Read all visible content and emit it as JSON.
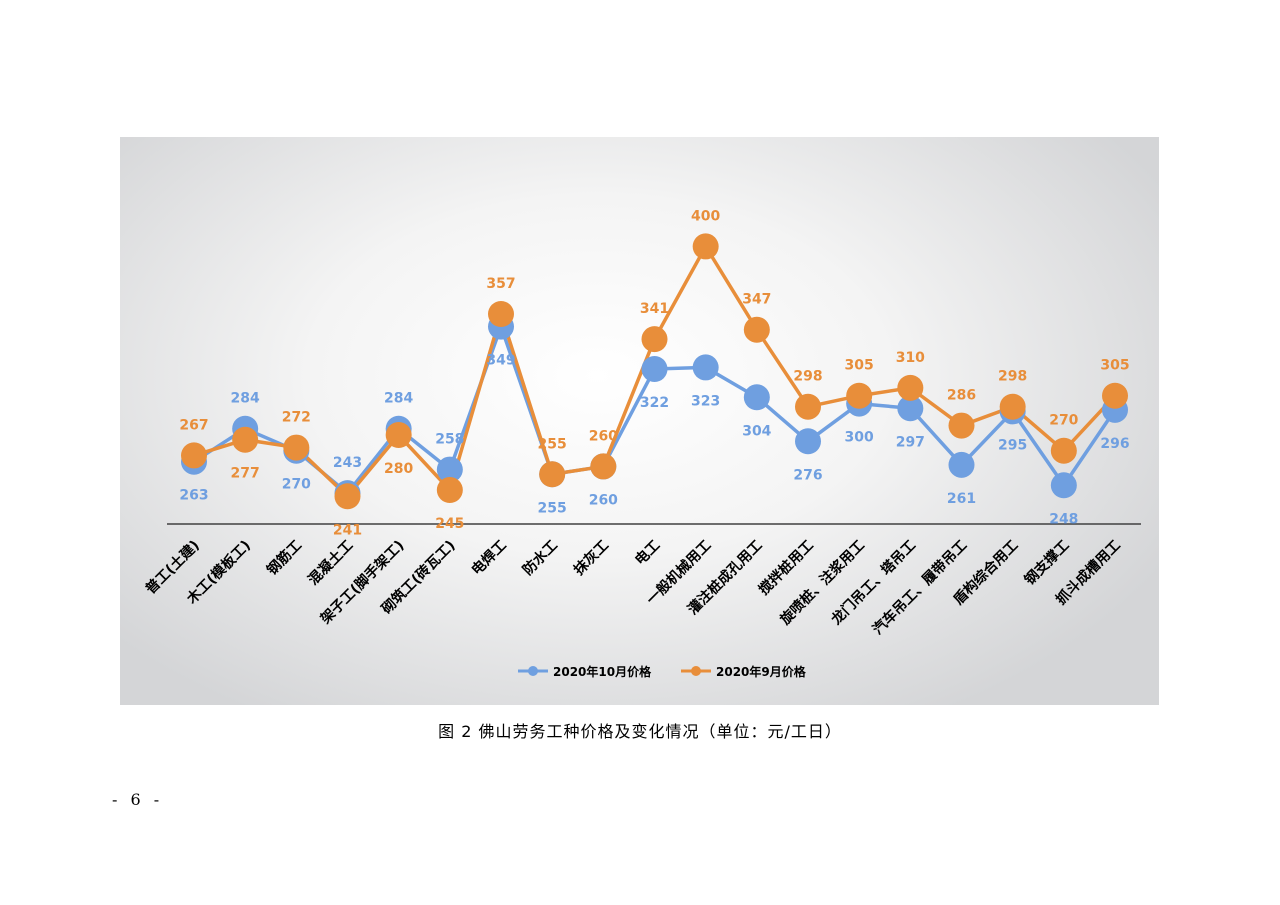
{
  "caption": "图 2   佛山劳务工种价格及变化情况（单位：元/工日）",
  "page_number": "- 6 -",
  "colors": {
    "series_oct": "#6f9fe0",
    "series_sep": "#e88e3a",
    "axis": "#404040"
  },
  "chart_data": {
    "type": "line",
    "title": "",
    "xlabel": "",
    "ylabel": "",
    "categories": [
      "普工(土建)",
      "木工(模板工)",
      "钢筋工",
      "混凝土工",
      "架子工(脚手架工)",
      "砌筑工(砖瓦工)",
      "电焊工",
      "防水工",
      "抹灰工",
      "电工",
      "一般机械用工",
      "灌注桩成孔用工",
      "搅拌桩用工",
      "旋喷桩、注浆用工",
      "龙门吊工、塔吊工",
      "汽车吊工、履带吊工",
      "盾构综合用工",
      "钢支撑工",
      "抓斗成槽用工"
    ],
    "series": [
      {
        "name": "2020年10月价格",
        "color": "#6f9fe0",
        "values": [
          263,
          284,
          270,
          243,
          284,
          258,
          349,
          255,
          260,
          322,
          323,
          304,
          276,
          300,
          297,
          261,
          295,
          248,
          296
        ]
      },
      {
        "name": "2020年9月价格",
        "color": "#e88e3a",
        "values": [
          267,
          277,
          272,
          241,
          280,
          245,
          357,
          255,
          260,
          341,
          400,
          347,
          298,
          305,
          310,
          286,
          298,
          270,
          305
        ]
      }
    ],
    "ylim": [
      210,
      420
    ],
    "grid": false,
    "legend_position": "bottom"
  }
}
